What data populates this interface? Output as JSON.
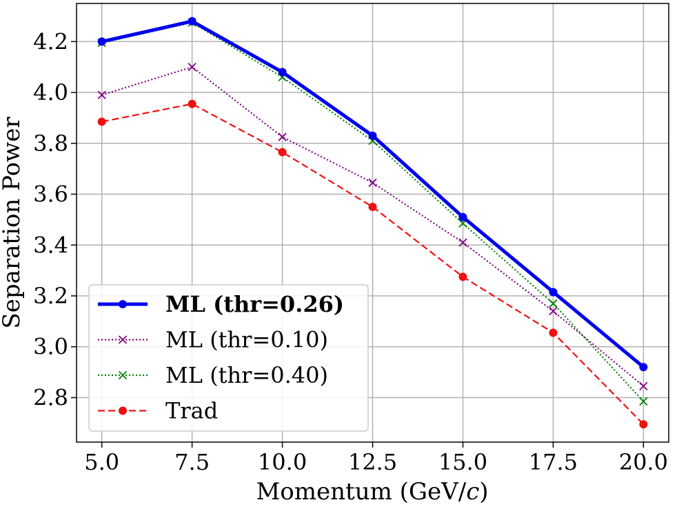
{
  "chart_data": {
    "type": "line",
    "xlabel": "Momentum (GeV/c)",
    "ylabel": "Separation Power",
    "x": [
      5.0,
      7.5,
      10.0,
      12.5,
      15.0,
      17.5,
      20.0
    ],
    "xlim": [
      4.3,
      20.7
    ],
    "ylim": [
      2.625,
      4.35
    ],
    "xticks": [
      "5.0",
      "7.5",
      "10.0",
      "12.5",
      "15.0",
      "17.5",
      "20.0"
    ],
    "yticks": [
      "2.8",
      "3.0",
      "3.2",
      "3.4",
      "3.6",
      "3.8",
      "4.0",
      "4.2"
    ],
    "grid": true,
    "legend_position": "lower-left",
    "series": [
      {
        "name": "ML (thr=0.26)",
        "values": [
          4.2,
          4.28,
          4.08,
          3.83,
          3.51,
          3.215,
          2.92
        ],
        "color": "#0000ee",
        "line_style": "solid",
        "marker": "circle",
        "bold_label": true
      },
      {
        "name": "ML (thr=0.10)",
        "values": [
          3.99,
          4.1,
          3.825,
          3.645,
          3.41,
          3.14,
          2.845
        ],
        "color": "#800080",
        "line_style": "dotted",
        "marker": "x",
        "bold_label": false
      },
      {
        "name": "ML (thr=0.40)",
        "values": [
          4.195,
          4.275,
          4.06,
          3.81,
          3.485,
          3.17,
          2.785
        ],
        "color": "#008000",
        "line_style": "dotted",
        "marker": "x",
        "bold_label": false
      },
      {
        "name": "Trad",
        "values": [
          3.885,
          3.955,
          3.765,
          3.55,
          3.275,
          3.055,
          2.695
        ],
        "color": "#ee1111",
        "line_style": "dashed",
        "marker": "circle",
        "bold_label": false
      }
    ]
  }
}
